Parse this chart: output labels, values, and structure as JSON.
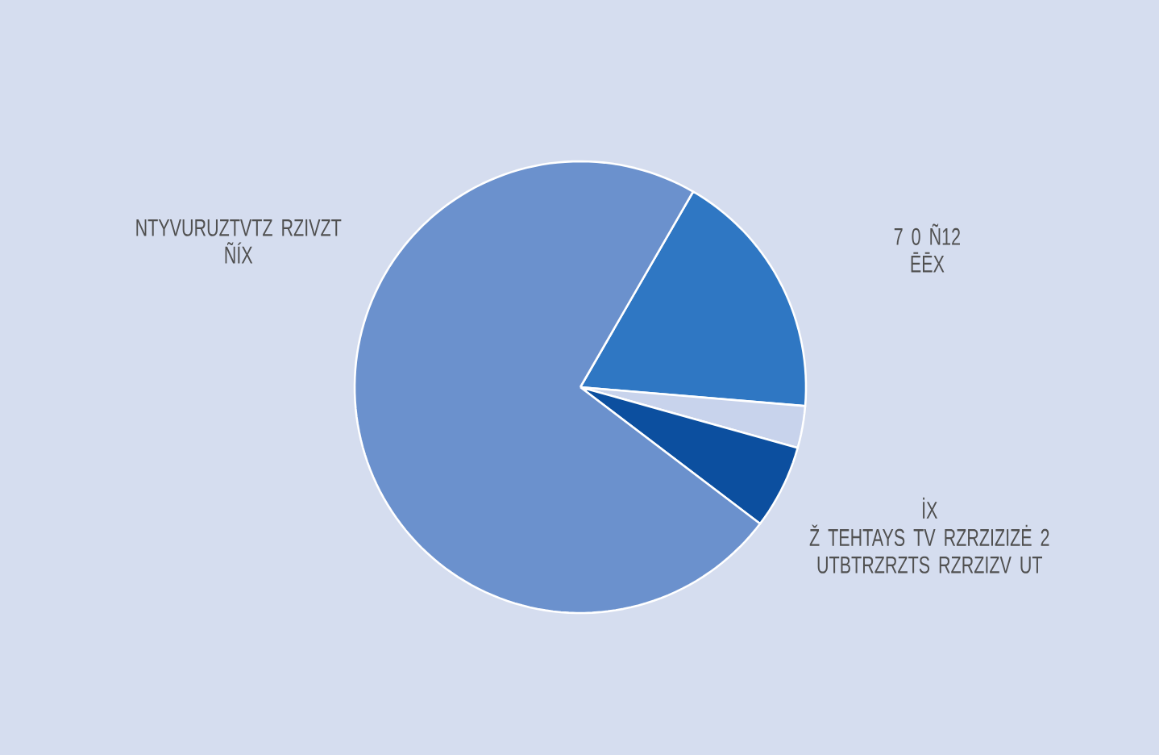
{
  "chart_data": {
    "type": "pie",
    "categories": [
      "7 0 Ñ12",
      null,
      "Ž TEHTAYS TV RZRZIZIZĖ 2 UTBTRZRZTS RZRZIZV UT",
      "NTYVURUZTVTZ RZIVZT"
    ],
    "values": [
      18,
      3,
      6,
      73
    ],
    "colors": [
      "#2f77c3",
      "#c8d3ec",
      "#0c4f9f",
      "#6b91cd"
    ],
    "value_labels": [
      "ĒĒX",
      null,
      "İX",
      "ÑÍX"
    ]
  }
}
